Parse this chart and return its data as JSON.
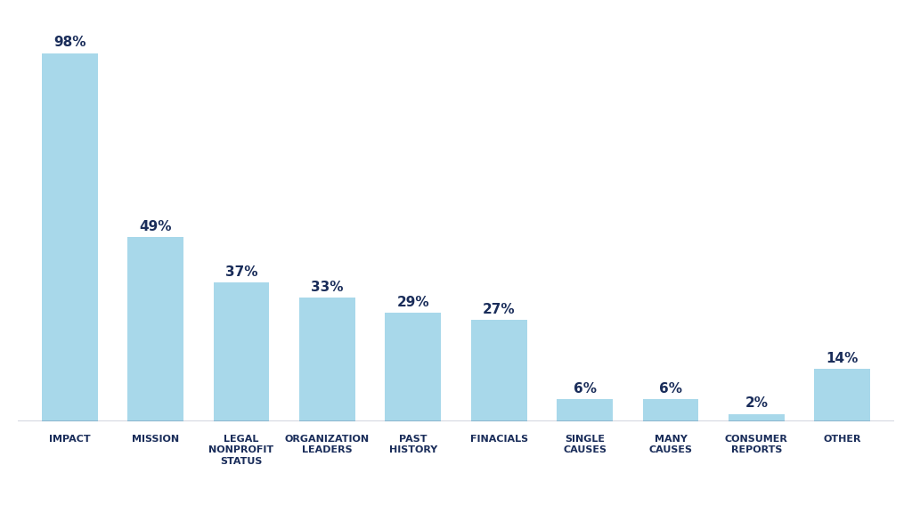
{
  "categories": [
    "IMPACT",
    "MISSION",
    "LEGAL\nNONPROFIT\nSTATUS",
    "ORGANIZATION\nLEADERS",
    "PAST\nHISTORY",
    "FINACIALS",
    "SINGLE\nCAUSES",
    "MANY\nCAUSES",
    "CONSUMER\nREPORTS",
    "OTHER"
  ],
  "values": [
    98,
    49,
    37,
    33,
    29,
    27,
    6,
    6,
    2,
    14
  ],
  "bar_color": "#a8d8ea",
  "label_color": "#1a2d5a",
  "background_color": "#ffffff",
  "bar_width": 0.65,
  "ylim": [
    0,
    108
  ],
  "label_fontsize": 11,
  "tick_fontsize": 8.0,
  "fig_width": 10.24,
  "fig_height": 5.77,
  "dpi": 100
}
